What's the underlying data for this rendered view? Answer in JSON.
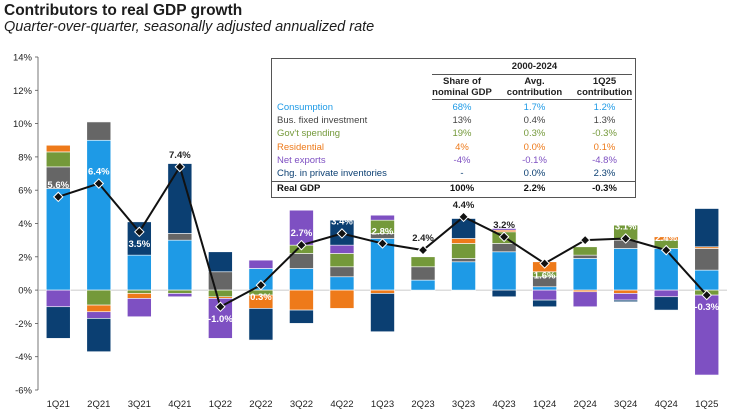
{
  "title": "Contributors to real GDP growth",
  "subtitle": "Quarter-over-quarter, seasonally adjusted annualized rate",
  "colors": {
    "consumption": "#1e9ae6",
    "bus_fixed_investment": "#666666",
    "govt_spending": "#74993a",
    "residential": "#ee7a1a",
    "net_exports": "#7e50c2",
    "inventories": "#0b3f72",
    "line": "#111111"
  },
  "table": {
    "period": "2000-2024",
    "headers": [
      "Share of nominal GDP",
      "Avg. contribution",
      "1Q25 contribution"
    ],
    "header_lines": [
      [
        "Share of",
        "nominal GDP"
      ],
      [
        "Avg.",
        "contribution"
      ],
      [
        "1Q25",
        "contribution"
      ]
    ],
    "rows": [
      {
        "label": "Consumption",
        "share": "68%",
        "avg": "1.7%",
        "q": "1.2%",
        "color": "#1e9ae6"
      },
      {
        "label": "Bus. fixed investment",
        "share": "13%",
        "avg": "0.4%",
        "q": "1.3%",
        "color": "#444444"
      },
      {
        "label": "Gov't spending",
        "share": "19%",
        "avg": "0.3%",
        "q": "-0.3%",
        "color": "#74993a"
      },
      {
        "label": "Residential",
        "share": "4%",
        "avg": "0.0%",
        "q": "0.1%",
        "color": "#ee7a1a"
      },
      {
        "label": "Net exports",
        "share": "-4%",
        "avg": "-0.1%",
        "q": "-4.8%",
        "color": "#7e50c2"
      },
      {
        "label": "Chg. in private inventories",
        "share": "-",
        "avg": "0.0%",
        "q": "2.3%",
        "color": "#0b3f72"
      },
      {
        "label": "Real GDP",
        "share": "100%",
        "avg": "2.2%",
        "q": "-0.3%",
        "color": "#111111"
      }
    ]
  },
  "chart_data": {
    "type": "bar",
    "stacked": true,
    "ylim": [
      -6,
      14
    ],
    "yticks": [
      "-6%",
      "-4%",
      "-2%",
      "0%",
      "2%",
      "4%",
      "6%",
      "8%",
      "10%",
      "12%",
      "14%"
    ],
    "ytick_values": [
      -6,
      -4,
      -2,
      0,
      2,
      4,
      6,
      8,
      10,
      12,
      14
    ],
    "categories": [
      "1Q21",
      "2Q21",
      "3Q21",
      "4Q21",
      "1Q22",
      "2Q22",
      "3Q22",
      "4Q22",
      "1Q23",
      "2Q23",
      "3Q23",
      "4Q23",
      "1Q24",
      "2Q24",
      "3Q24",
      "4Q24",
      "1Q25"
    ],
    "series": [
      {
        "name": "Consumption",
        "key": "consumption",
        "values": [
          6.1,
          9.0,
          2.1,
          3.0,
          0.0,
          1.3,
          1.3,
          0.8,
          3.1,
          0.6,
          1.7,
          2.3,
          0.2,
          1.9,
          2.5,
          2.5,
          1.2
        ]
      },
      {
        "name": "Bus. fixed investment",
        "key": "bus_fixed_investment",
        "values": [
          1.3,
          1.1,
          0.0,
          0.4,
          1.1,
          0.0,
          0.9,
          0.6,
          0.3,
          0.8,
          0.2,
          0.5,
          0.6,
          0.2,
          0.5,
          0.0,
          1.3
        ]
      },
      {
        "name": "Gov't spending",
        "key": "govt_spending",
        "values": [
          0.9,
          -0.9,
          -0.2,
          -0.2,
          -0.4,
          -0.3,
          0.5,
          0.8,
          0.8,
          0.6,
          0.9,
          0.7,
          0.3,
          0.5,
          0.9,
          0.5,
          -0.3
        ]
      },
      {
        "name": "Residential",
        "key": "residential",
        "values": [
          0.4,
          -0.4,
          -0.3,
          0.0,
          -0.1,
          -0.8,
          -1.2,
          -1.1,
          -0.2,
          0.0,
          0.3,
          0.1,
          0.6,
          -0.1,
          -0.2,
          0.2,
          0.1
        ]
      },
      {
        "name": "Net exports",
        "key": "net_exports",
        "values": [
          -1.0,
          -0.4,
          -1.1,
          -0.2,
          -2.4,
          0.5,
          2.1,
          0.5,
          0.3,
          0.0,
          0.0,
          0.1,
          -0.6,
          -0.9,
          -0.4,
          -0.4,
          -4.8
        ]
      },
      {
        "name": "Chg. in private inventories",
        "key": "inventories",
        "values": [
          -1.9,
          -2.0,
          2.0,
          4.2,
          1.2,
          -1.9,
          -0.8,
          1.5,
          -2.3,
          0.0,
          1.2,
          -0.4,
          -0.4,
          0.0,
          -0.1,
          -0.8,
          2.3
        ]
      }
    ],
    "line": {
      "name": "Real GDP",
      "values": [
        5.6,
        6.4,
        3.5,
        7.4,
        -1.0,
        0.3,
        2.7,
        3.4,
        2.8,
        2.4,
        4.4,
        3.2,
        1.6,
        3.0,
        3.1,
        2.4,
        -0.3
      ]
    },
    "point_labels": [
      "5.6%",
      "6.4%",
      "3.5%",
      "7.4%",
      "-1.0%",
      "0.3%",
      "2.7%",
      "3.4%",
      "2.8%",
      "2.4%",
      "4.4%",
      "3.2%",
      "1.6%",
      "3.0%",
      "3.1%",
      "2.4%",
      "-0.3%"
    ]
  }
}
